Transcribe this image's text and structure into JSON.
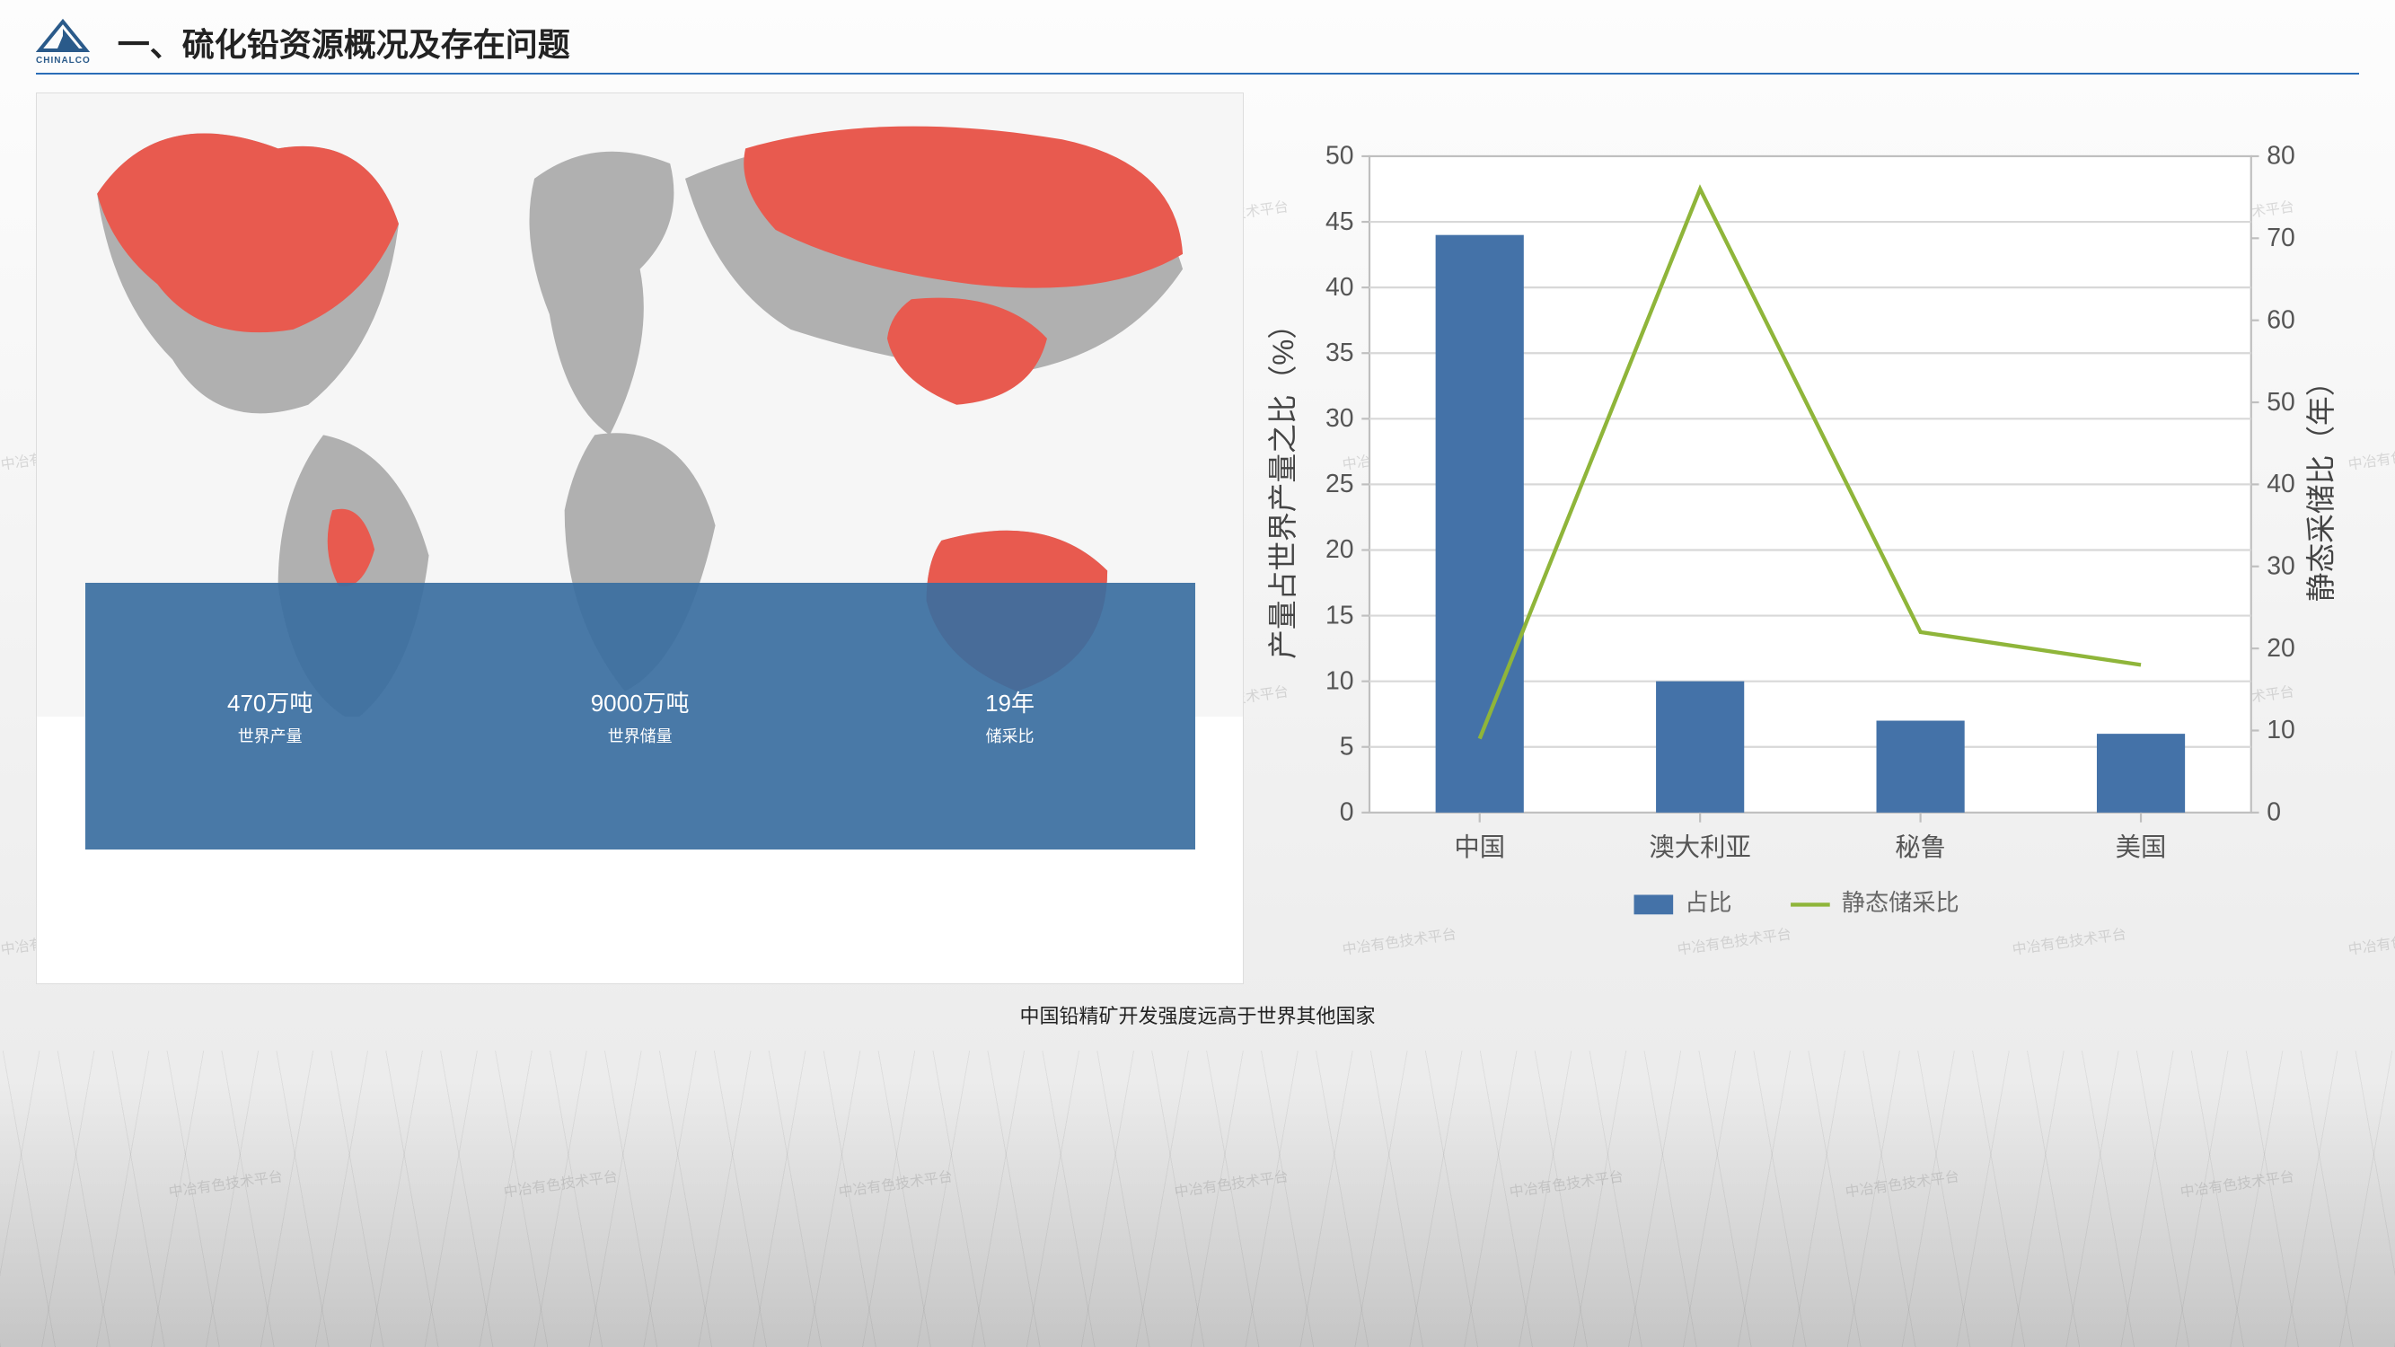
{
  "watermark_text": "中冶有色技术平台",
  "logo": {
    "brand": "CHINALCO",
    "fill": "#2a5a8a"
  },
  "title": "一、硫化铅资源概况及存在问题",
  "map": {
    "highlighted_color": "#e85a4f",
    "base_color": "#b0b0b0",
    "ocean_color": "#f6f6f6"
  },
  "stats": {
    "bg_color": "rgba(58,110,160,0.92)",
    "text_color": "#ffffff",
    "items": [
      {
        "value": "470万吨",
        "label": "世界产量"
      },
      {
        "value": "9000万吨",
        "label": "世界储量"
      },
      {
        "value": "19年",
        "label": "储采比"
      }
    ]
  },
  "chart": {
    "type": "bar+line",
    "categories": [
      "中国",
      "澳大利亚",
      "秘鲁",
      "美国"
    ],
    "bar_series": {
      "name": "占比",
      "values": [
        44,
        10,
        7,
        6
      ],
      "color": "#4472a8"
    },
    "line_series": {
      "name": "静态储采比",
      "values": [
        9,
        76,
        22,
        18
      ],
      "color": "#8fb53a",
      "stroke_width": 2
    },
    "y_left": {
      "label": "产量占世界产量之比（%）",
      "min": 0,
      "max": 50,
      "step": 5
    },
    "y_right": {
      "label": "静态采储比（年）",
      "min": 0,
      "max": 80,
      "step": 10
    },
    "grid_color": "#d8d8d8",
    "axis_color": "#bfbfbf",
    "background": "#ffffff",
    "legend": {
      "items": [
        {
          "label": "占比",
          "type": "bar",
          "color": "#4472a8"
        },
        {
          "label": "静态储采比",
          "type": "line",
          "color": "#8fb53a"
        }
      ]
    },
    "bar_width_ratio": 0.4,
    "label_fontsize": 13
  },
  "caption": "中国铅精矿开发强度远高于世界其他国家"
}
